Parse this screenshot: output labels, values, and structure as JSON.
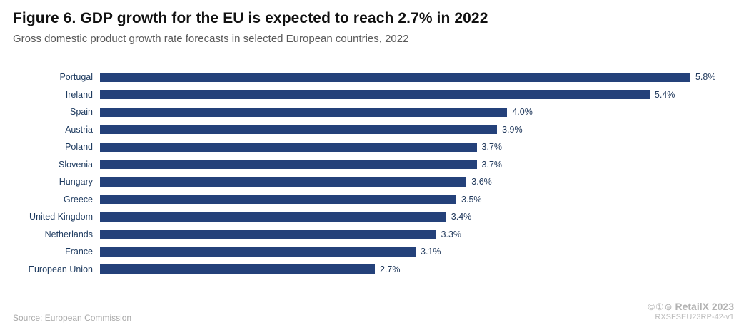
{
  "header": {
    "title": "Figure 6. GDP growth for the EU is expected to reach 2.7% in 2022",
    "subtitle": "Gross domestic product growth rate forecasts in selected European countries, 2022"
  },
  "chart_data": {
    "type": "bar",
    "orientation": "horizontal",
    "title": "Figure 6. GDP growth for the EU is expected to reach 2.7% in 2022",
    "subtitle": "Gross domestic product growth rate forecasts in selected European countries, 2022",
    "categories": [
      "Portugal",
      "Ireland",
      "Spain",
      "Austria",
      "Poland",
      "Slovenia",
      "Hungary",
      "Greece",
      "United Kingdom",
      "Netherlands",
      "France",
      "European Union"
    ],
    "values": [
      5.8,
      5.4,
      4.0,
      3.9,
      3.7,
      3.7,
      3.6,
      3.5,
      3.4,
      3.3,
      3.1,
      2.7
    ],
    "value_labels": [
      "5.8%",
      "5.4%",
      "4.0%",
      "3.9%",
      "3.7%",
      "3.7%",
      "3.6%",
      "3.5%",
      "3.4%",
      "3.3%",
      "3.1%",
      "2.7%"
    ],
    "xlabel": "",
    "ylabel": "",
    "xlim": [
      0,
      6.2
    ],
    "grid": false,
    "legend": false,
    "bar_color": "#24417a"
  },
  "footer": {
    "source": "Source: European Commission",
    "license_icons": "©①⊜",
    "brand": "RetailX 2023",
    "code": "RXSFSEU23RP-42-v1"
  },
  "colors": {
    "bar": "#24417a",
    "category_label": "#1d3a5f",
    "value_label": "#21395c",
    "title": "#111111",
    "subtitle": "#595959",
    "footer_text": "#a9a9a9"
  }
}
